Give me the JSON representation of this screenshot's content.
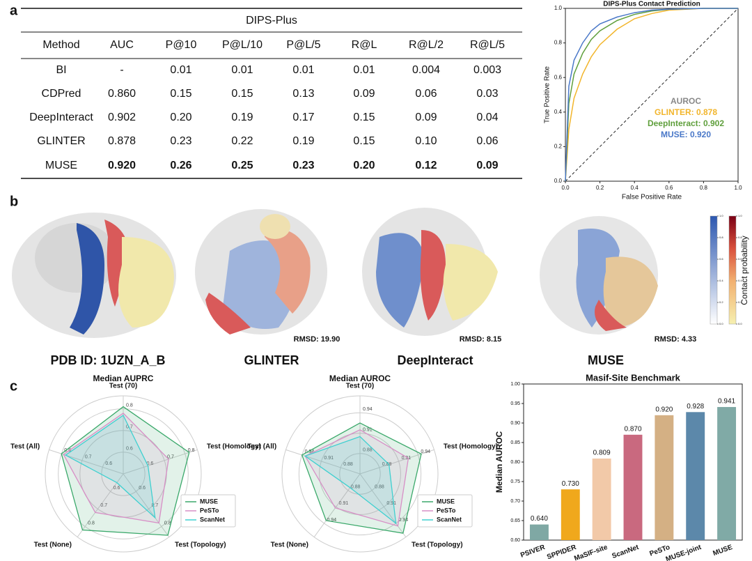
{
  "panels": [
    "a",
    "b",
    "c"
  ],
  "table": {
    "title": "DIPS-Plus",
    "header": [
      "Method",
      "AUC",
      "P@10",
      "P@L/10",
      "P@L/5",
      "R@L",
      "R@L/2",
      "R@L/5"
    ],
    "rows": [
      [
        "BI",
        "-",
        "0.01",
        "0.01",
        "0.01",
        "0.01",
        "0.004",
        "0.003"
      ],
      [
        "CDPred",
        "0.860",
        "0.15",
        "0.15",
        "0.13",
        "0.09",
        "0.06",
        "0.03"
      ],
      [
        "DeepInteract",
        "0.902",
        "0.20",
        "0.19",
        "0.17",
        "0.15",
        "0.09",
        "0.04"
      ],
      [
        "GLINTER",
        "0.878",
        "0.23",
        "0.22",
        "0.19",
        "0.15",
        "0.10",
        "0.06"
      ],
      [
        "MUSE",
        "0.920",
        "0.26",
        "0.25",
        "0.23",
        "0.20",
        "0.12",
        "0.09"
      ]
    ]
  },
  "structures": {
    "labels": [
      "PDB ID: 1UZN_A_B",
      "GLINTER",
      "DeepInteract",
      "MUSE"
    ],
    "rmsd": [
      "RMSD: 19.90",
      "RMSD: 8.15",
      "RMSD: 4.33"
    ],
    "colorbar": {
      "label": "Contact probability",
      "ticks": [
        {
          "value": 0,
          "label": "0.0"
        },
        {
          "value": 0.2,
          "label": "0.2"
        },
        {
          "value": 0.4,
          "label": "0.4"
        },
        {
          "value": 0.6,
          "label": "0.6"
        },
        {
          "value": 0.8,
          "label": "0.8"
        },
        {
          "value": 1,
          "label": "1.0"
        }
      ]
    }
  },
  "chart_data": [
    {
      "type": "line",
      "title": "DIPS-Plus Contact Prediction",
      "xlabel": "False Positive Rate",
      "ylabel": "True Positive Rate",
      "legend_title": "AUROC",
      "x": [
        0,
        0.02,
        0.05,
        0.1,
        0.15,
        0.2,
        0.3,
        0.4,
        0.5,
        0.6,
        0.8,
        1
      ],
      "series": [
        {
          "name": "GLINTER: 0.878",
          "color": "#f2b52b",
          "values": [
            0,
            0.3,
            0.48,
            0.62,
            0.72,
            0.79,
            0.88,
            0.94,
            0.97,
            0.99,
            1,
            1
          ]
        },
        {
          "name": "DeepInteract: 0.902",
          "color": "#5f9f3c",
          "values": [
            0,
            0.45,
            0.62,
            0.74,
            0.82,
            0.87,
            0.93,
            0.965,
            0.985,
            0.995,
            1,
            1
          ]
        },
        {
          "name": "MUSE: 0.920",
          "color": "#4a78c8",
          "values": [
            0,
            0.55,
            0.7,
            0.8,
            0.87,
            0.91,
            0.95,
            0.975,
            0.99,
            0.995,
            1,
            1
          ]
        }
      ],
      "xlim": [
        0,
        1
      ],
      "ylim": [
        0,
        1
      ],
      "xticks": [
        {
          "value": 0,
          "label": "0.0"
        },
        {
          "value": 0.2,
          "label": "0.2"
        },
        {
          "value": 0.4,
          "label": "0.4"
        },
        {
          "value": 0.6,
          "label": "0.6"
        },
        {
          "value": 0.8,
          "label": "0.8"
        },
        {
          "value": 1,
          "label": "1.0"
        }
      ],
      "yticks": [
        {
          "value": 0,
          "label": "0.0"
        },
        {
          "value": 0.2,
          "label": "0.2"
        },
        {
          "value": 0.4,
          "label": "0.4"
        },
        {
          "value": 0.6,
          "label": "0.6"
        },
        {
          "value": 0.8,
          "label": "0.8"
        },
        {
          "value": 1,
          "label": "1.0"
        }
      ]
    },
    {
      "type": "radar",
      "title": "Median AUPRC",
      "axes": [
        "Test (70)",
        "Test (Homology)",
        "Test (Topology)",
        "Test (None)",
        "Test (All)"
      ],
      "rlim": [
        0.5,
        0.86
      ],
      "rticks": [
        0.6,
        0.7,
        0.8
      ],
      "series": [
        {
          "name": "MUSE",
          "color": "#3aa86a",
          "values": [
            0.81,
            0.82,
            0.85,
            0.82,
            0.8
          ]
        },
        {
          "name": "PeSTo",
          "color": "#d78fc6",
          "values": [
            0.78,
            0.72,
            0.78,
            0.72,
            0.79
          ]
        },
        {
          "name": "ScanNet",
          "color": "#3fd0d0",
          "values": [
            0.77,
            0.62,
            0.75,
            0.55,
            0.78
          ]
        }
      ]
    },
    {
      "type": "radar",
      "title": "Median AUROC",
      "axes": [
        "Test (70)",
        "Test (Homology)",
        "Test (Topology)",
        "Test (None)",
        "Test (All)"
      ],
      "rlim": [
        0.85,
        0.965
      ],
      "rticks": [
        0.88,
        0.91,
        0.94
      ],
      "series": [
        {
          "name": "MUSE",
          "color": "#3aa86a",
          "values": [
            0.925,
            0.945,
            0.958,
            0.935,
            0.94
          ]
        },
        {
          "name": "PeSTo",
          "color": "#d78fc6",
          "values": [
            0.915,
            0.925,
            0.945,
            0.912,
            0.935
          ]
        },
        {
          "name": "ScanNet",
          "color": "#3fd0d0",
          "values": [
            0.905,
            0.895,
            0.94,
            0.875,
            0.935
          ]
        }
      ]
    },
    {
      "type": "bar",
      "title": "Masif-Site Benchmark",
      "ylabel": "Median AUROC",
      "categories": [
        "PSIVER",
        "SPPIDER",
        "MaSIF-site",
        "ScanNet",
        "PeSTo",
        "MUSE-joint",
        "MUSE"
      ],
      "values": [
        0.64,
        0.73,
        0.809,
        0.87,
        0.92,
        0.928,
        0.941
      ],
      "value_labels": [
        "0.640",
        "0.730",
        "0.809",
        "0.870",
        "0.920",
        "0.928",
        "0.941"
      ],
      "colors": [
        "#7fa8a4",
        "#f0a81c",
        "#f2c9a8",
        "#c9697f",
        "#d4b084",
        "#5c88aa",
        "#80aaa6"
      ],
      "ylim": [
        0.6,
        1.0
      ],
      "yticks": [
        {
          "value": 0.6,
          "label": "0.60"
        },
        {
          "value": 0.65,
          "label": "0.65"
        },
        {
          "value": 0.7,
          "label": "0.70"
        },
        {
          "value": 0.75,
          "label": "0.75"
        },
        {
          "value": 0.8,
          "label": "0.80"
        },
        {
          "value": 0.85,
          "label": "0.85"
        },
        {
          "value": 0.9,
          "label": "0.90"
        },
        {
          "value": 0.95,
          "label": "0.95"
        },
        {
          "value": 1,
          "label": "1.00"
        }
      ]
    }
  ]
}
